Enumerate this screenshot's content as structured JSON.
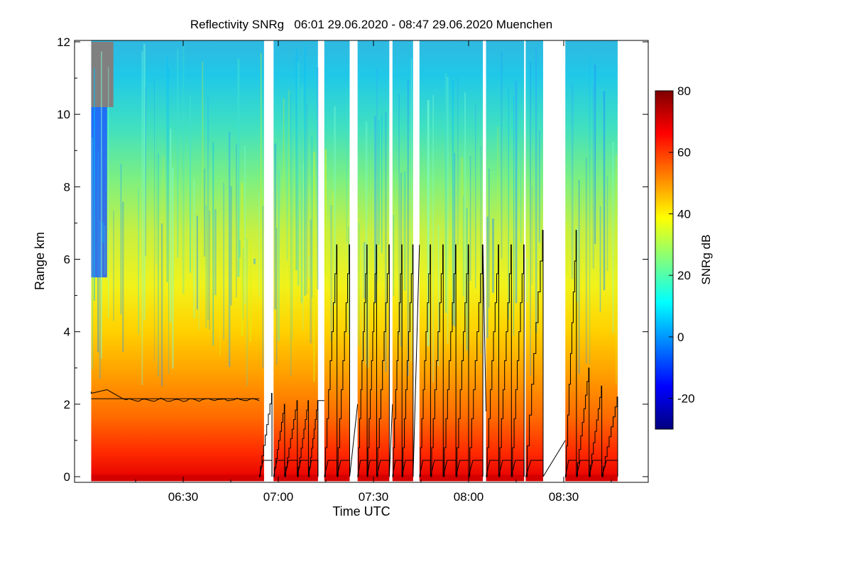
{
  "chart_data": {
    "type": "heatmap",
    "title": "Reflectivity SNRg   06:01 29.06.2020 - 08:47 29.06.2020 Muenchen",
    "xlabel": "Time UTC",
    "ylabel": "Range km",
    "x_range_minutes": [
      361,
      527
    ],
    "y_range_km": [
      0,
      12
    ],
    "x_ticks": [
      {
        "value": 390,
        "label": "06:30"
      },
      {
        "value": 420,
        "label": "07:00"
      },
      {
        "value": 450,
        "label": "07:30"
      },
      {
        "value": 480,
        "label": "08:00"
      },
      {
        "value": 510,
        "label": "08:30"
      }
    ],
    "y_ticks": [
      {
        "value": 0,
        "label": "0"
      },
      {
        "value": 2,
        "label": "2"
      },
      {
        "value": 4,
        "label": "4"
      },
      {
        "value": 6,
        "label": "6"
      },
      {
        "value": 8,
        "label": "8"
      },
      {
        "value": 10,
        "label": "10"
      },
      {
        "value": 12,
        "label": "12"
      }
    ],
    "colorbar": {
      "label": "SNRg dB",
      "range": [
        -30,
        80
      ],
      "ticks": [
        {
          "value": -20,
          "label": "-20"
        },
        {
          "value": 0,
          "label": "0"
        },
        {
          "value": 20,
          "label": "20"
        },
        {
          "value": 40,
          "label": "40"
        },
        {
          "value": 60,
          "label": "60"
        },
        {
          "value": 80,
          "label": "80"
        }
      ],
      "colormap": [
        "#00007f",
        "#0000ff",
        "#007fff",
        "#00ffff",
        "#7fff7f",
        "#ffff00",
        "#ff7f00",
        "#ff0000",
        "#7f0000"
      ]
    },
    "data_segments_minutes": [
      [
        361,
        415.5
      ],
      [
        418.5,
        432.5
      ],
      [
        434.5,
        442.5
      ],
      [
        445,
        455
      ],
      [
        456,
        462.5
      ],
      [
        464.5,
        484.5
      ],
      [
        485.5,
        497.5
      ],
      [
        498,
        503.5
      ],
      [
        510.5,
        527
      ]
    ],
    "no_signal_region": {
      "x": [
        361,
        368
      ],
      "y_km": [
        10.2,
        12
      ],
      "color": "#808080"
    },
    "vertical_profile": {
      "stable_phase": {
        "x": [
          361,
          414
        ],
        "y_km": [
          2.05,
          2.45
        ]
      },
      "scanning_phase": {
        "x": [
          414,
          527
        ],
        "y_km": [
          0,
          6.8
        ]
      }
    },
    "colors": {
      "no_data": "#ffffff",
      "no_signal": "#808080",
      "line": "#000000"
    }
  }
}
